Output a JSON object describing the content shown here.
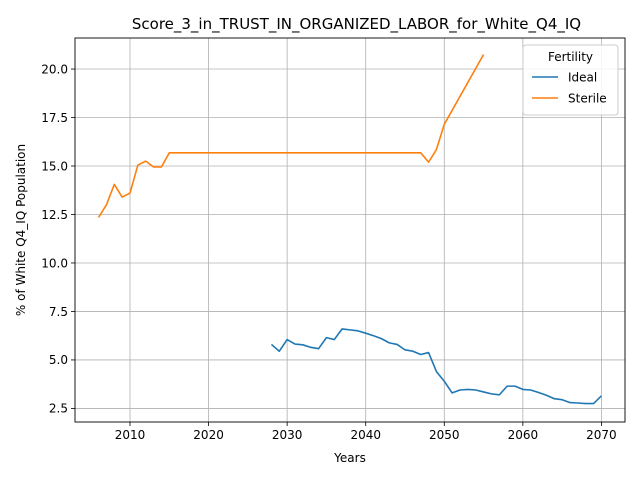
{
  "chart_data": {
    "type": "line",
    "title": "Score_3_in_TRUST_IN_ORGANIZED_LABOR_for_White_Q4_IQ",
    "xlabel": "Years",
    "ylabel": "% of White Q4_IQ Population",
    "xlim": [
      2003,
      2073
    ],
    "ylim": [
      1.8,
      21.6
    ],
    "xticks": [
      2010,
      2020,
      2030,
      2040,
      2050,
      2060,
      2070
    ],
    "yticks": [
      2.5,
      5.0,
      7.5,
      10.0,
      12.5,
      15.0,
      17.5,
      20.0
    ],
    "xtick_labels": [
      "2010",
      "2020",
      "2030",
      "2040",
      "2050",
      "2060",
      "2070"
    ],
    "ytick_labels": [
      "2.5",
      "5.0",
      "7.5",
      "10.0",
      "12.5",
      "15.0",
      "17.5",
      "20.0"
    ],
    "grid": true,
    "legend": {
      "title": "Fertility",
      "placement": "top-right"
    },
    "series": [
      {
        "name": "Ideal",
        "color": "#1f77b4",
        "points": [
          [
            2028,
            5.8
          ],
          [
            2029,
            5.45
          ],
          [
            2030,
            6.05
          ],
          [
            2031,
            5.82
          ],
          [
            2032,
            5.78
          ],
          [
            2033,
            5.65
          ],
          [
            2034,
            5.58
          ],
          [
            2035,
            6.15
          ],
          [
            2036,
            6.05
          ],
          [
            2037,
            6.6
          ],
          [
            2038,
            6.55
          ],
          [
            2039,
            6.5
          ],
          [
            2040,
            6.38
          ],
          [
            2041,
            6.25
          ],
          [
            2042,
            6.1
          ],
          [
            2043,
            5.88
          ],
          [
            2044,
            5.8
          ],
          [
            2045,
            5.52
          ],
          [
            2046,
            5.45
          ],
          [
            2047,
            5.28
          ],
          [
            2048,
            5.38
          ],
          [
            2049,
            4.4
          ],
          [
            2050,
            3.9
          ],
          [
            2051,
            3.3
          ],
          [
            2052,
            3.45
          ],
          [
            2053,
            3.48
          ],
          [
            2054,
            3.45
          ],
          [
            2055,
            3.35
          ],
          [
            2056,
            3.25
          ],
          [
            2057,
            3.2
          ],
          [
            2058,
            3.65
          ],
          [
            2059,
            3.65
          ],
          [
            2060,
            3.48
          ],
          [
            2061,
            3.45
          ],
          [
            2062,
            3.32
          ],
          [
            2063,
            3.18
          ],
          [
            2064,
            3.0
          ],
          [
            2065,
            2.95
          ],
          [
            2066,
            2.8
          ],
          [
            2067,
            2.78
          ],
          [
            2068,
            2.75
          ],
          [
            2069,
            2.75
          ],
          [
            2070,
            3.15
          ]
        ]
      },
      {
        "name": "Sterile",
        "color": "#ff7f0e",
        "points": [
          [
            2006,
            12.35
          ],
          [
            2007,
            13.0
          ],
          [
            2008,
            14.05
          ],
          [
            2009,
            13.4
          ],
          [
            2010,
            13.6
          ],
          [
            2011,
            15.05
          ],
          [
            2012,
            15.25
          ],
          [
            2013,
            14.95
          ],
          [
            2014,
            14.95
          ],
          [
            2015,
            15.68
          ],
          [
            2016,
            15.68
          ],
          [
            2020,
            15.68
          ],
          [
            2030,
            15.68
          ],
          [
            2040,
            15.68
          ],
          [
            2046,
            15.68
          ],
          [
            2047,
            15.68
          ],
          [
            2048,
            15.2
          ],
          [
            2049,
            15.85
          ],
          [
            2050,
            17.15
          ],
          [
            2055,
            20.75
          ]
        ]
      }
    ]
  }
}
